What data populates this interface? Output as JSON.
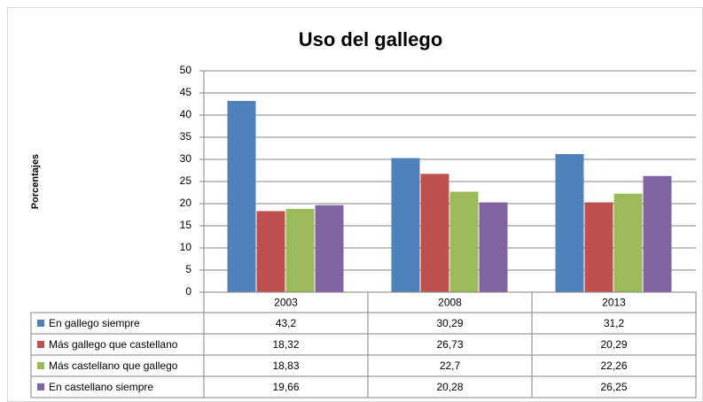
{
  "chart_data": {
    "type": "bar",
    "title": "Uso del gallego",
    "y_label": "Porcentajes",
    "categories": [
      "2003",
      "2008",
      "2013"
    ],
    "series": [
      {
        "name": "En gallego siempre",
        "color": "#4f81bd",
        "values": [
          43.2,
          30.29,
          31.2
        ],
        "value_labels": [
          "43,2",
          "30,29",
          "31,2"
        ]
      },
      {
        "name": "Más gallego que castellano",
        "color": "#c0504d",
        "values": [
          18.32,
          26.73,
          20.29
        ],
        "value_labels": [
          "18,32",
          "26,73",
          "20,29"
        ]
      },
      {
        "name": "Más castellano que gallego",
        "color": "#9bbb59",
        "values": [
          18.83,
          22.7,
          22.26
        ],
        "value_labels": [
          "18,83",
          "22,7",
          "22,26"
        ]
      },
      {
        "name": "En castellano siempre",
        "color": "#8064a2",
        "values": [
          19.66,
          20.28,
          26.25
        ],
        "value_labels": [
          "19,66",
          "20,28",
          "26,25"
        ]
      }
    ],
    "ylim": [
      0,
      50
    ],
    "yticks": [
      0,
      5,
      10,
      15,
      20,
      25,
      30,
      35,
      40,
      45,
      50
    ],
    "grid": true
  }
}
